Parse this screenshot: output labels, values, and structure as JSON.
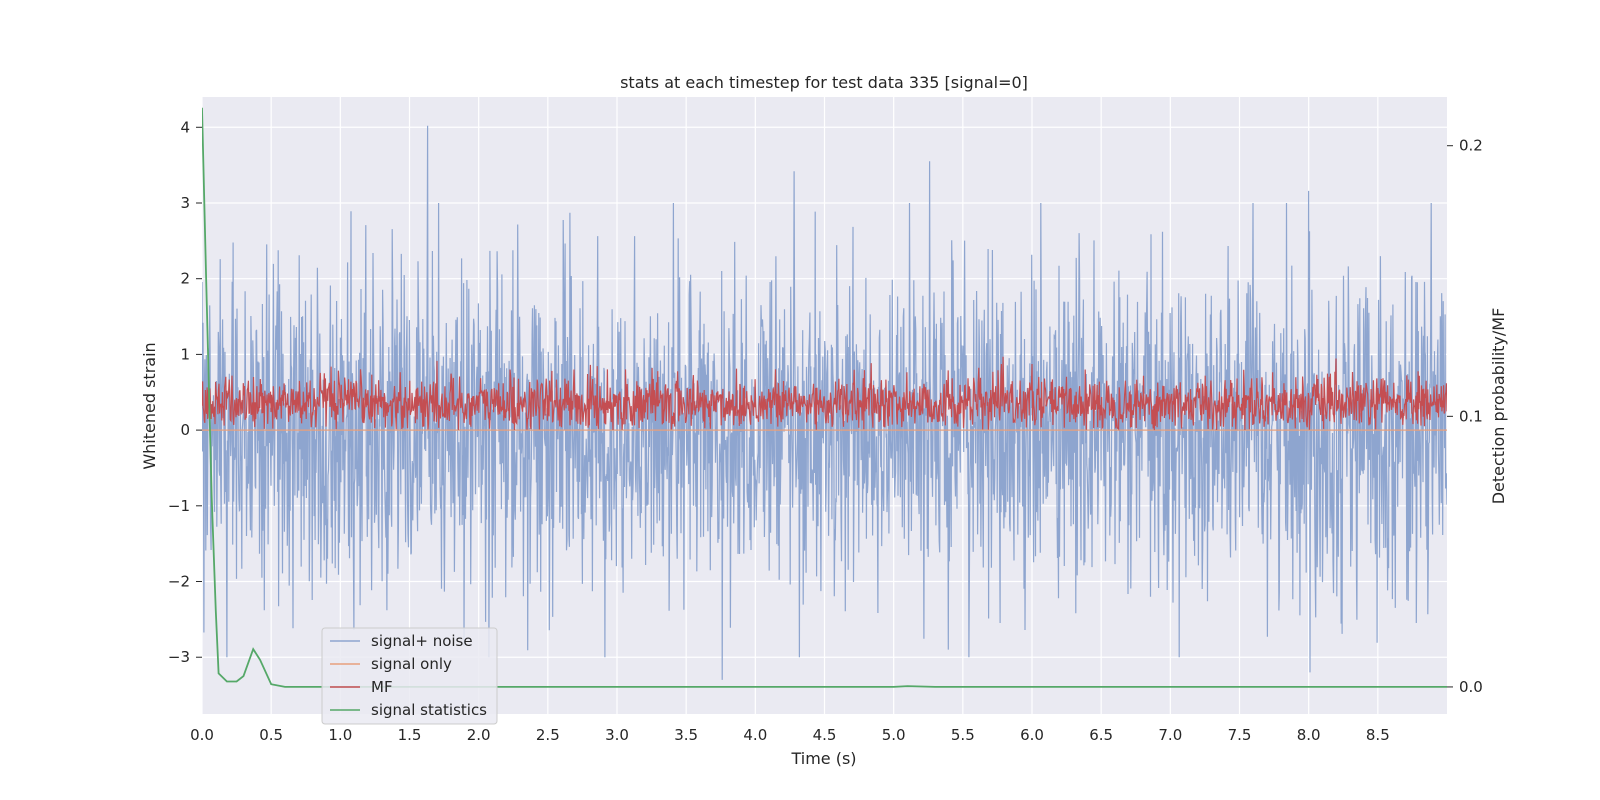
{
  "chart_data": {
    "type": "line",
    "title": "stats at each timestep for test data 335 [signal=0]",
    "xlabel": "Time (s)",
    "ylabel": "Whitened strain",
    "y2label": "Detection probability/MF",
    "xlim": [
      0.0,
      9.0
    ],
    "ylim": [
      -3.75,
      4.4
    ],
    "y2lim": [
      -0.01,
      0.218
    ],
    "xticks": [
      "0.0",
      "0.5",
      "1.0",
      "1.5",
      "2.0",
      "2.5",
      "3.0",
      "3.5",
      "4.0",
      "4.5",
      "5.0",
      "5.5",
      "6.0",
      "6.5",
      "7.0",
      "7.5",
      "8.0",
      "8.5"
    ],
    "xtick_values": [
      0.0,
      0.5,
      1.0,
      1.5,
      2.0,
      2.5,
      3.0,
      3.5,
      4.0,
      4.5,
      5.0,
      5.5,
      6.0,
      6.5,
      7.0,
      7.5,
      8.0,
      8.5
    ],
    "yticks": [
      "−3",
      "−2",
      "−1",
      "0",
      "1",
      "2",
      "3",
      "4"
    ],
    "ytick_values": [
      -3,
      -2,
      -1,
      0,
      1,
      2,
      3,
      4
    ],
    "y2ticks": [
      "0.0",
      "0.1",
      "0.2"
    ],
    "y2tick_values": [
      0.0,
      0.1,
      0.2
    ],
    "grid": true,
    "legend_position": "lower-left",
    "series": [
      {
        "name": "signal+ noise",
        "color": "#8ea5cf",
        "axis": "left",
        "description_values": {
          "approx_range": [
            -3.3,
            4.0
          ],
          "notable_peaks": [
            {
              "x": 1.63,
              "y": 4.02
            },
            {
              "x": 5.26,
              "y": 3.55
            },
            {
              "x": 4.28,
              "y": 3.42
            },
            {
              "x": 8.0,
              "y": 3.16
            },
            {
              "x": 3.76,
              "y": -3.3
            },
            {
              "x": 8.01,
              "y": -3.2
            }
          ]
        }
      },
      {
        "name": "signal only",
        "color": "#e8a07c",
        "axis": "left",
        "x": [
          0.0,
          9.0
        ],
        "y": [
          0.0,
          0.0
        ]
      },
      {
        "name": "MF",
        "color": "#c44e52",
        "axis": "left",
        "description_values": {
          "approx_range": [
            0.0,
            0.97
          ],
          "typical": 0.35
        }
      },
      {
        "name": "signal statistics",
        "color": "#55a868",
        "axis": "right",
        "x": [
          0.0,
          0.03,
          0.07,
          0.1,
          0.12,
          0.18,
          0.25,
          0.3,
          0.37,
          0.42,
          0.5,
          0.6,
          1.0,
          2.0,
          3.0,
          4.0,
          5.0,
          5.1,
          5.3,
          6.0,
          7.0,
          8.0,
          9.0
        ],
        "y": [
          0.214,
          0.15,
          0.07,
          0.028,
          0.005,
          0.002,
          0.002,
          0.004,
          0.014,
          0.01,
          0.001,
          0.0,
          0.0,
          0.0,
          0.0,
          0.0,
          0.0,
          0.0003,
          0.0,
          0.0,
          0.0,
          0.0,
          0.0
        ]
      }
    ]
  }
}
